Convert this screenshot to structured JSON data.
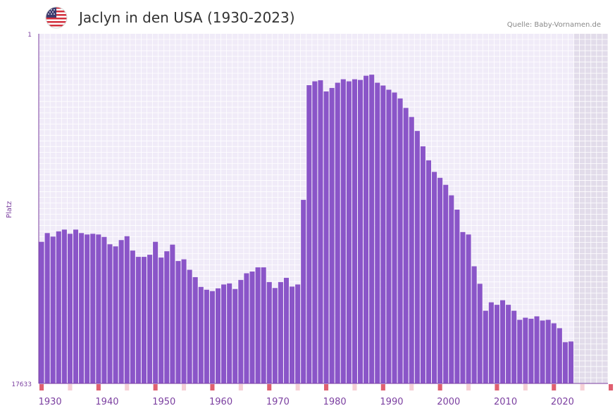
{
  "header": {
    "title": "Jaclyn in den USA (1930-2023)",
    "source": "Quelle: Baby-Vornamen.de",
    "flag_icon": "us-flag-icon"
  },
  "colors": {
    "bar": "#8a55c8",
    "axis": "#7b3fa0",
    "plot_bg": "#f0ebf8",
    "future_bg": "#e2dcea",
    "grid": "#ffffff",
    "tick_major": "#e06070",
    "tick_minor": "#f6d0d6"
  },
  "chart_data": {
    "type": "bar",
    "title": "Jaclyn in den USA (1930-2023)",
    "ylabel": "Platz",
    "xlabel": "",
    "y_axis": "rank, 1 at top, 17633 at bottom (bar height shows popularity)",
    "ylim": [
      1,
      17633
    ],
    "y_tick_labels": [
      "1",
      "17633"
    ],
    "xlim": [
      1928,
      2028
    ],
    "x_tick_labels": [
      "1930",
      "1940",
      "1950",
      "1960",
      "1970",
      "1980",
      "1990",
      "2000",
      "2010",
      "2020"
    ],
    "future_region_start": 2022,
    "series": [
      {
        "name": "Jaclyn",
        "years": [
          1928,
          1929,
          1930,
          1931,
          1932,
          1933,
          1934,
          1935,
          1936,
          1937,
          1938,
          1939,
          1940,
          1941,
          1942,
          1943,
          1944,
          1945,
          1946,
          1947,
          1948,
          1949,
          1950,
          1951,
          1952,
          1953,
          1954,
          1955,
          1956,
          1957,
          1958,
          1959,
          1960,
          1961,
          1962,
          1963,
          1964,
          1965,
          1966,
          1967,
          1968,
          1969,
          1970,
          1971,
          1972,
          1973,
          1974,
          1975,
          1976,
          1977,
          1978,
          1979,
          1980,
          1981,
          1982,
          1983,
          1984,
          1985,
          1986,
          1987,
          1988,
          1989,
          1990,
          1991,
          1992,
          1993,
          1994,
          1995,
          1996,
          1997,
          1998,
          1999,
          2000,
          2001,
          2002,
          2003,
          2004,
          2005,
          2006,
          2007,
          2008,
          2009,
          2010,
          2011,
          2012,
          2013,
          2014,
          2015,
          2016,
          2017,
          2018,
          2019,
          2020,
          2021
        ],
        "values": [
          40.5,
          43.0,
          42.0,
          43.5,
          44.0,
          42.8,
          44.0,
          43.0,
          42.6,
          42.8,
          42.6,
          41.9,
          39.8,
          39.2,
          41.0,
          42.1,
          38.0,
          36.2,
          36.2,
          36.8,
          40.5,
          36.0,
          37.8,
          39.7,
          35.0,
          35.5,
          32.5,
          30.4,
          27.6,
          26.8,
          26.4,
          27.2,
          28.3,
          28.6,
          27.0,
          29.6,
          31.5,
          32.0,
          33.2,
          33.2,
          29.0,
          27.3,
          29.0,
          30.2,
          27.7,
          28.3,
          52.5,
          85.3,
          86.4,
          86.7,
          83.5,
          84.5,
          86.0,
          87.0,
          86.4,
          87.0,
          86.8,
          88.0,
          88.3,
          86.0,
          85.2,
          84.0,
          83.2,
          81.5,
          78.8,
          76.2,
          72.2,
          67.8,
          63.8,
          60.5,
          58.8,
          56.8,
          53.8,
          49.7,
          43.3,
          42.6,
          33.5,
          28.5,
          20.8,
          23.2,
          22.5,
          23.8,
          22.5,
          20.8,
          18.2,
          18.8,
          18.5,
          19.2,
          18.0,
          18.2,
          17.2,
          15.8,
          11.8,
          12.0
        ]
      }
    ]
  }
}
